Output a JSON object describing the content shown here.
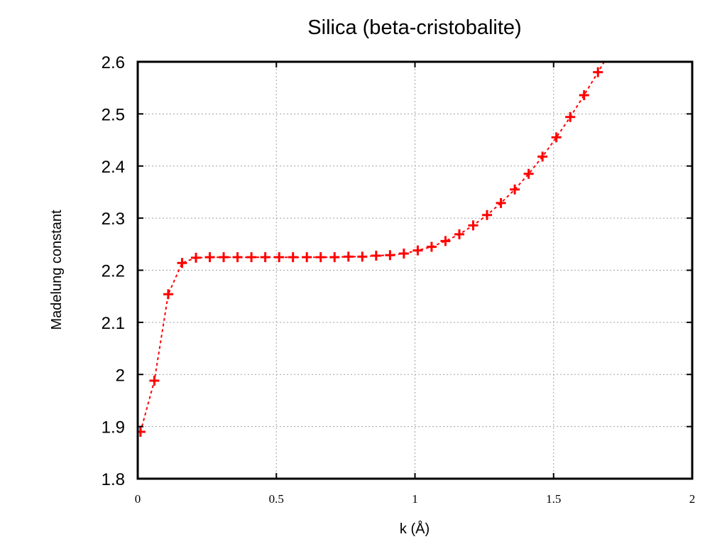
{
  "chart_data": {
    "type": "line",
    "title": "Silica (beta-cristobalite)",
    "xlabel": "k (Å)",
    "ylabel": "Madelung constant",
    "xlim": [
      0,
      2
    ],
    "ylim": [
      1.8,
      2.6
    ],
    "grid": true,
    "marker": "plus",
    "line_style": "dashed",
    "colors": {
      "series": "#ff0000",
      "axes": "#000000",
      "grid": "#a0a0a0"
    },
    "xticks": [
      {
        "value": 0,
        "label": "0"
      },
      {
        "value": 0.5,
        "label": "0.5"
      },
      {
        "value": 1,
        "label": "1"
      },
      {
        "value": 1.5,
        "label": "1.5"
      },
      {
        "value": 2,
        "label": "2"
      }
    ],
    "yticks": [
      {
        "value": 1.8,
        "label": "1.8"
      },
      {
        "value": 1.9,
        "label": "1.9"
      },
      {
        "value": 2.0,
        "label": "2"
      },
      {
        "value": 2.1,
        "label": "2.1"
      },
      {
        "value": 2.2,
        "label": "2.2"
      },
      {
        "value": 2.3,
        "label": "2.3"
      },
      {
        "value": 2.4,
        "label": "2.4"
      },
      {
        "value": 2.5,
        "label": "2.5"
      },
      {
        "value": 2.6,
        "label": "2.6"
      }
    ],
    "series": [
      {
        "x": [
          0.01,
          0.06,
          0.11,
          0.16,
          0.21,
          0.26,
          0.31,
          0.36,
          0.41,
          0.46,
          0.51,
          0.56,
          0.61,
          0.66,
          0.71,
          0.76,
          0.81,
          0.86,
          0.91,
          0.96,
          1.01,
          1.06,
          1.11,
          1.16,
          1.21,
          1.26,
          1.31,
          1.36,
          1.41,
          1.46,
          1.51,
          1.56,
          1.61,
          1.66
        ],
        "y": [
          1.89,
          1.988,
          2.154,
          2.214,
          2.224,
          2.225,
          2.225,
          2.225,
          2.225,
          2.225,
          2.225,
          2.225,
          2.225,
          2.225,
          2.225,
          2.226,
          2.226,
          2.228,
          2.229,
          2.232,
          2.238,
          2.245,
          2.256,
          2.269,
          2.286,
          2.306,
          2.329,
          2.355,
          2.385,
          2.418,
          2.455,
          2.494,
          2.536,
          2.58
        ]
      }
    ]
  }
}
